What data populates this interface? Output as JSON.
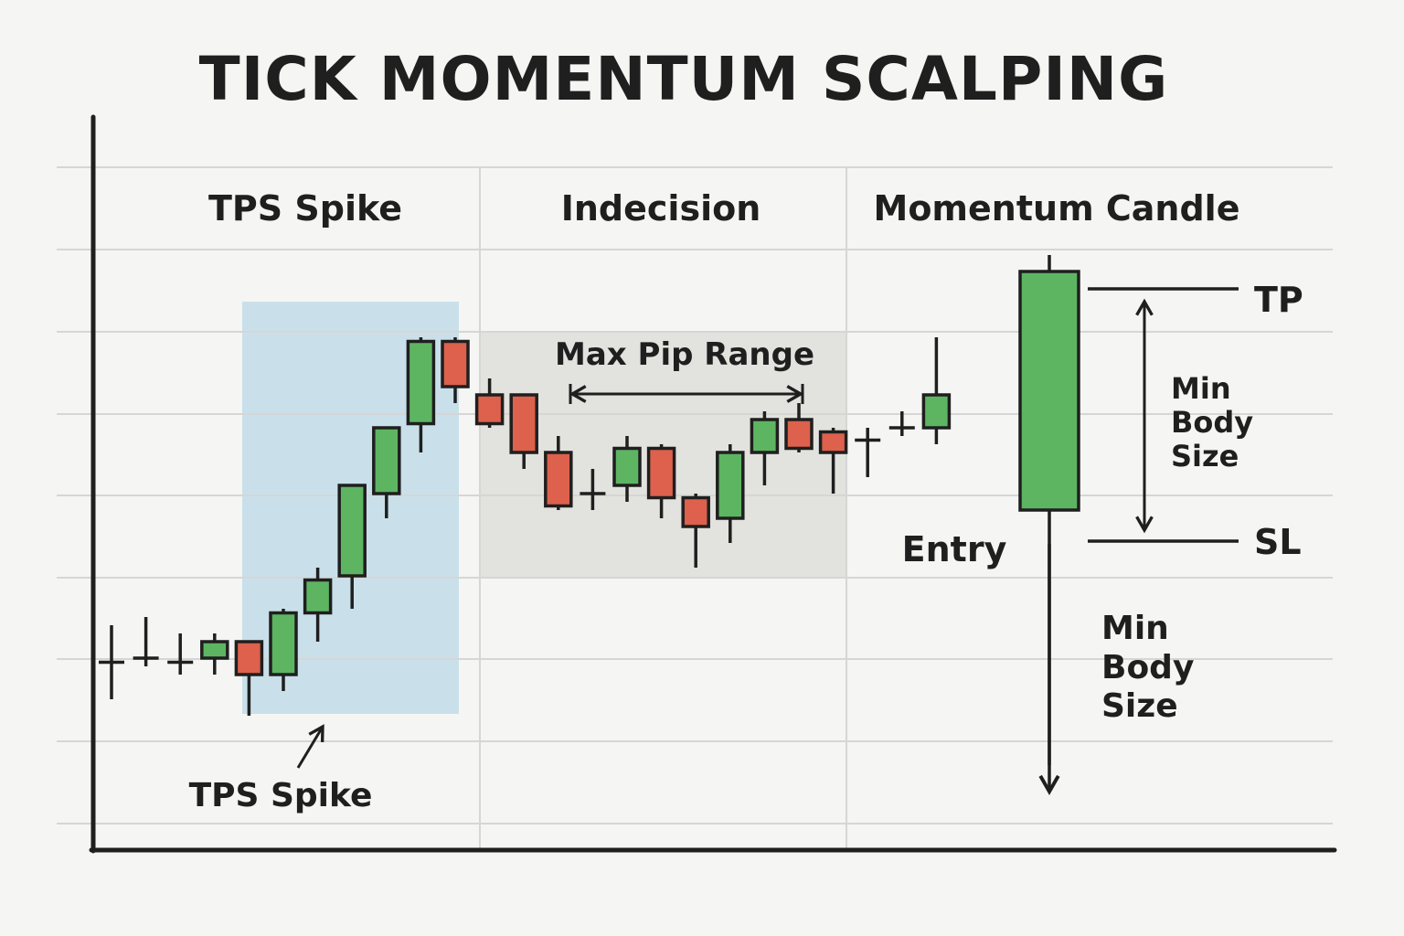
{
  "title": "TICK MOMENTUM SCALPING",
  "sections": {
    "tps_spike": "TPS Spike",
    "indecision": "Indecision",
    "momentum_candle": "Momentum Candle"
  },
  "annotations": {
    "max_pip_range": "Max Pip Range",
    "tps_spike_pointer": "TPS Spike",
    "entry": "Entry",
    "tp": "TP",
    "sl": "SL",
    "min_body_size_upper": [
      "Min",
      "Body",
      "Size"
    ],
    "min_body_size_lower": [
      "Min",
      "Body",
      "Size"
    ]
  },
  "colors": {
    "bullish": "#5db562",
    "bearish": "#dd614c",
    "spike_zone": "#c9e0ea",
    "range_zone": "#e2e2de",
    "grid": "#d6d6d6",
    "ink": "#1f1f1f"
  },
  "candles": [
    {
      "type": "doji",
      "high": 2.4,
      "low": 1.5,
      "open": 1.95,
      "close": 1.95
    },
    {
      "type": "doji",
      "high": 2.5,
      "low": 1.9,
      "open": 2.0,
      "close": 2.0
    },
    {
      "type": "doji",
      "high": 2.3,
      "low": 1.8,
      "open": 1.95,
      "close": 1.95
    },
    {
      "type": "bull",
      "high": 2.3,
      "low": 1.8,
      "open": 2.0,
      "close": 2.2
    },
    {
      "type": "bear",
      "high": 2.2,
      "low": 1.3,
      "open": 2.2,
      "close": 1.8
    },
    {
      "type": "bull",
      "high": 2.6,
      "low": 1.6,
      "open": 1.8,
      "close": 2.55
    },
    {
      "type": "bull",
      "high": 3.1,
      "low": 2.2,
      "open": 2.55,
      "close": 2.95
    },
    {
      "type": "bull",
      "high": 4.1,
      "low": 2.6,
      "open": 3.0,
      "close": 4.1
    },
    {
      "type": "bull",
      "high": 4.8,
      "low": 3.7,
      "open": 4.0,
      "close": 4.8
    },
    {
      "type": "bull",
      "high": 5.9,
      "low": 4.5,
      "open": 4.85,
      "close": 5.85
    },
    {
      "type": "bear",
      "high": 5.9,
      "low": 5.1,
      "open": 5.85,
      "close": 5.3
    },
    {
      "type": "bear",
      "high": 5.4,
      "low": 4.8,
      "open": 5.2,
      "close": 4.85
    },
    {
      "type": "bear",
      "high": 5.2,
      "low": 4.3,
      "open": 5.2,
      "close": 4.5
    },
    {
      "type": "bear",
      "high": 4.7,
      "low": 3.8,
      "open": 4.5,
      "close": 3.85
    },
    {
      "type": "doji",
      "high": 4.3,
      "low": 3.8,
      "open": 4.0,
      "close": 4.0
    },
    {
      "type": "bull",
      "high": 4.7,
      "low": 3.9,
      "open": 4.1,
      "close": 4.55
    },
    {
      "type": "bear",
      "high": 4.6,
      "low": 3.7,
      "open": 4.55,
      "close": 3.95
    },
    {
      "type": "bear",
      "high": 4.0,
      "low": 3.1,
      "open": 3.95,
      "close": 3.6
    },
    {
      "type": "bull",
      "high": 4.6,
      "low": 3.4,
      "open": 3.7,
      "close": 4.5
    },
    {
      "type": "bull",
      "high": 5.0,
      "low": 4.1,
      "open": 4.5,
      "close": 4.9
    },
    {
      "type": "bear",
      "high": 5.1,
      "low": 4.5,
      "open": 4.9,
      "close": 4.55
    },
    {
      "type": "bear",
      "high": 4.8,
      "low": 4.0,
      "open": 4.75,
      "close": 4.5
    },
    {
      "type": "doji",
      "high": 4.8,
      "low": 4.2,
      "open": 4.65,
      "close": 4.65
    },
    {
      "type": "doji",
      "high": 5.0,
      "low": 4.7,
      "open": 4.8,
      "close": 4.8
    },
    {
      "type": "bull",
      "high": 5.9,
      "low": 4.6,
      "open": 4.8,
      "close": 5.2
    },
    {
      "type": "bull",
      "high": 6.9,
      "low": 0.7,
      "open": 3.8,
      "close": 6.7
    }
  ]
}
